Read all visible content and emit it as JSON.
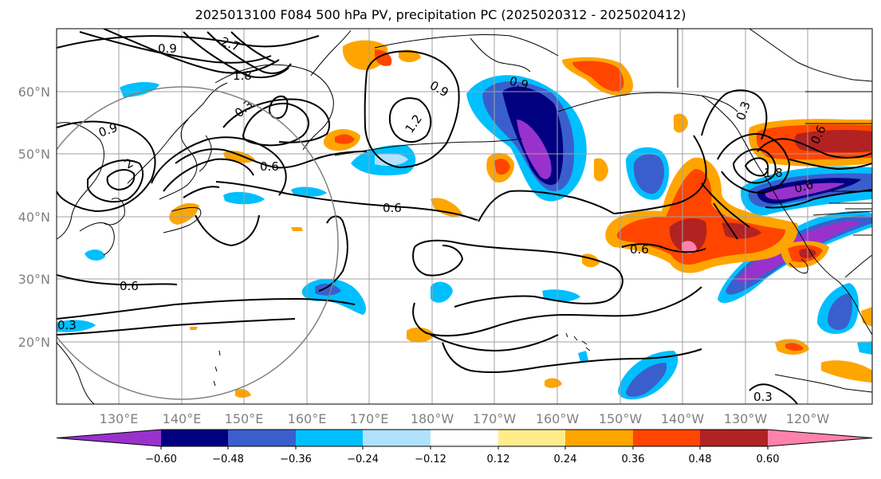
{
  "title": "2025013100 F084 500 hPa PV, precipitation PC (2025020312 - 2025020412)",
  "map": {
    "lat_labels": [
      "60°N",
      "50°N",
      "40°N",
      "30°N",
      "20°N"
    ],
    "lon_labels": [
      "130°E",
      "140°E",
      "150°E",
      "160°E",
      "170°E",
      "180°W",
      "170°W",
      "160°W",
      "150°W",
      "140°W",
      "130°W",
      "120°W"
    ],
    "contour_labels": [
      "0.9",
      "2.7",
      "1.8",
      "0.3",
      "0.9",
      "0.9",
      "1.2",
      "0.9",
      "2",
      "0.6",
      "0.6",
      "0.6",
      "0.6",
      "0.6",
      "1.8",
      "0.6",
      "0.3",
      "0.3",
      "0.3"
    ]
  },
  "colorbar": {
    "tick_labels": [
      "−0.60",
      "−0.48",
      "−0.36",
      "−0.24",
      "−0.12",
      "0.12",
      "0.24",
      "0.36",
      "0.48",
      "0.60"
    ],
    "colors": [
      "#9932cc",
      "#000080",
      "#3a5fcd",
      "#00bfff",
      "#b0e2ff",
      "#ffffff",
      "#ffec8b",
      "#ffa500",
      "#ff4500",
      "#b22222",
      "#ff82ab"
    ]
  }
}
